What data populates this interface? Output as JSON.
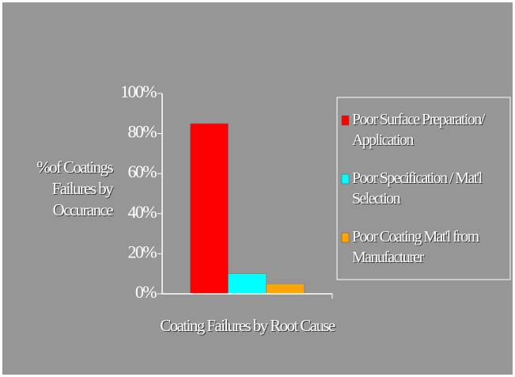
{
  "chart_data": {
    "type": "bar",
    "y_label": "%of Coatings Failures by Occurance",
    "x_label": "Coating Failures by Root Cause",
    "categories": [
      null
    ],
    "series": [
      {
        "name": "Poor Surface Preparation/ Application",
        "color": "#ff0000",
        "values": [
          85
        ]
      },
      {
        "name": "Poor Specification / Mat'l Selection",
        "color": "#00ffff",
        "values": [
          10
        ]
      },
      {
        "name": "Poor Coating Mat'l from Manufacturer",
        "color": "#ffa500",
        "values": [
          5
        ]
      }
    ],
    "ylim": [
      0,
      100
    ],
    "yticks": [
      {
        "value": 0,
        "label": "0%"
      },
      {
        "value": 20,
        "label": "20%"
      },
      {
        "value": 40,
        "label": "40%"
      },
      {
        "value": 60,
        "label": "60%"
      },
      {
        "value": 80,
        "label": "80%"
      },
      {
        "value": 100,
        "label": "100%"
      }
    ],
    "legend": "right"
  }
}
